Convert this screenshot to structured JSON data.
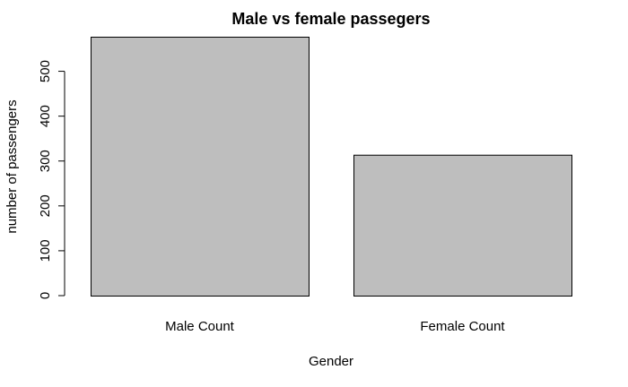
{
  "chart_data": {
    "type": "bar",
    "title": "Male vs female passegers",
    "xlabel": "Gender",
    "ylabel": "number of passengers",
    "categories": [
      "Male Count",
      "Female Count"
    ],
    "values": [
      577,
      314
    ],
    "ylim": [
      0,
      577
    ],
    "yticks": [
      0,
      100,
      200,
      300,
      400,
      500
    ],
    "grid": false,
    "legend": "none",
    "bar_fill": "#bebebe",
    "bar_stroke": "#000000"
  }
}
